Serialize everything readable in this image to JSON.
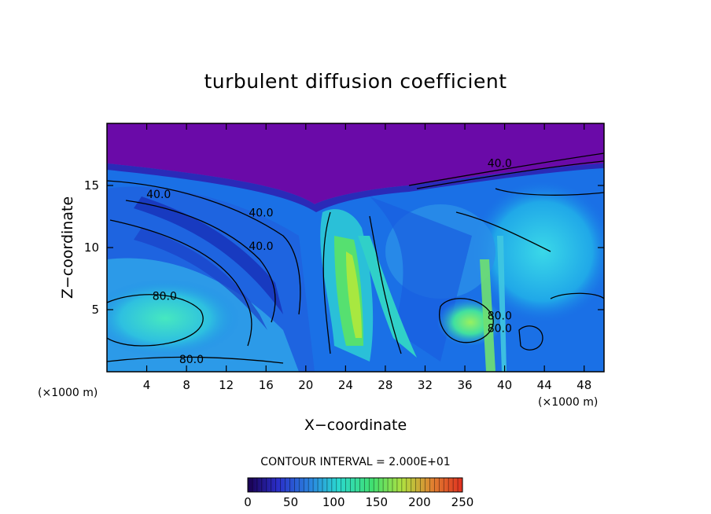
{
  "chart_data": {
    "type": "heatmap",
    "title": "turbulent diffusion coefficient",
    "xlabel": "X−coordinate",
    "ylabel": "Z−coordinate",
    "x_unit": "(×1000 m)",
    "z_unit": "(×1000 m)",
    "xlim": [
      0,
      50
    ],
    "ylim": [
      0,
      20
    ],
    "x_ticks": [
      4,
      8,
      12,
      16,
      20,
      24,
      28,
      32,
      36,
      40,
      44,
      48
    ],
    "y_ticks": [
      5,
      10,
      15
    ],
    "contour_interval_text": "CONTOUR INTERVAL = 2.000E+01",
    "contour_labels": [
      {
        "text": "40.0",
        "x": 5.2,
        "z": 14.0
      },
      {
        "text": "40.0",
        "x": 15.5,
        "z": 12.5
      },
      {
        "text": "40.0",
        "x": 15.5,
        "z": 9.8
      },
      {
        "text": "80.0",
        "x": 5.8,
        "z": 5.8
      },
      {
        "text": "80.0",
        "x": 8.5,
        "z": 0.7
      },
      {
        "text": "40.0",
        "x": 39.5,
        "z": 16.5
      },
      {
        "text": "80.0",
        "x": 39.5,
        "z": 3.2
      },
      {
        "text": "80.0",
        "x": 39.5,
        "z": 4.2
      }
    ],
    "colorbar": {
      "min": 0,
      "max": 250,
      "ticks": [
        0,
        50,
        100,
        150,
        200,
        250
      ],
      "colors": [
        "#1a0050",
        "#2a2ec8",
        "#2a8ae0",
        "#2ad8d0",
        "#40e070",
        "#b0e040",
        "#e08030",
        "#e03020"
      ]
    },
    "regions": [
      {
        "name": "upper layer",
        "level": 0,
        "color": "#6a0aa8"
      },
      {
        "name": "left vortex core",
        "level": 95,
        "color": "#3ee0c0"
      },
      {
        "name": "central plume",
        "level": 140,
        "color": "#50e060"
      },
      {
        "name": "right eddy",
        "level": 130,
        "color": "#68e070"
      },
      {
        "name": "background",
        "level": 45,
        "color": "#1a78e8"
      }
    ]
  }
}
